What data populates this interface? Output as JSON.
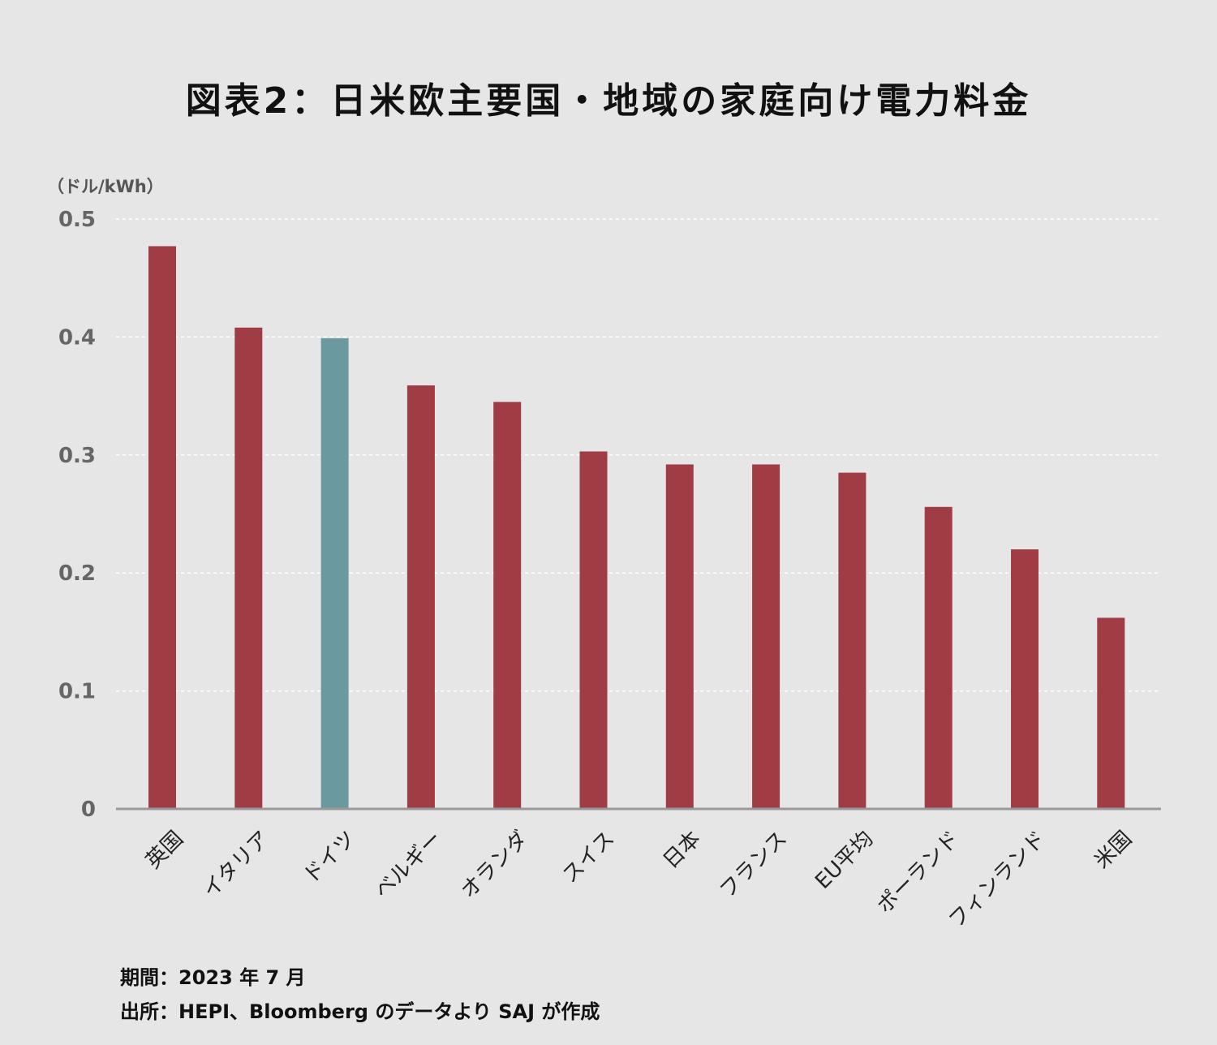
{
  "chart_data": {
    "type": "bar",
    "title": "図表2：日米欧主要国・地域の家庭向け電力料金",
    "ylabel": "（ドル/kWh）",
    "ylim": [
      0,
      0.5
    ],
    "yticks": [
      "0",
      "0.1",
      "0.2",
      "0.3",
      "0.4",
      "0.5"
    ],
    "grid": true,
    "categories": [
      "英国",
      "イタリア",
      "ドイツ",
      "ベルギー",
      "オランダ",
      "スイス",
      "日本",
      "フランス",
      "EU平均",
      "ポーランド",
      "フィンランド",
      "米国"
    ],
    "values": [
      0.477,
      0.408,
      0.399,
      0.359,
      0.345,
      0.303,
      0.292,
      0.292,
      0.285,
      0.256,
      0.22,
      0.162
    ],
    "highlight_index": 2,
    "colors": {
      "bar": "#a03c44",
      "highlight": "#6a9aa0",
      "grid": "#ffffff",
      "axis": "#999999"
    }
  },
  "notes": {
    "period": "期間：2023 年 7 月",
    "source": "出所：HEPI、Bloomberg のデータより SAJ が作成"
  }
}
